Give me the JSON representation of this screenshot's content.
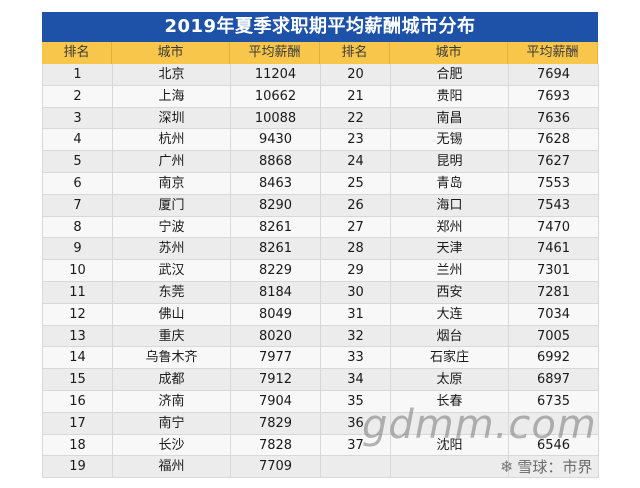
{
  "title": "2019年夏季求职期平均薪酬城市分布",
  "headers": [
    "排名",
    "城市",
    "平均薪酬",
    "排名",
    "城市",
    "平均薪酬"
  ],
  "left_rows": [
    {
      "rank": "1",
      "city": "北京",
      "salary": "11204"
    },
    {
      "rank": "2",
      "city": "上海",
      "salary": "10662"
    },
    {
      "rank": "3",
      "city": "深圳",
      "salary": "10088"
    },
    {
      "rank": "4",
      "city": "杭州",
      "salary": "9430"
    },
    {
      "rank": "5",
      "city": "广州",
      "salary": "8868"
    },
    {
      "rank": "6",
      "city": "南京",
      "salary": "8463"
    },
    {
      "rank": "7",
      "city": "厦门",
      "salary": "8290"
    },
    {
      "rank": "8",
      "city": "宁波",
      "salary": "8261"
    },
    {
      "rank": "9",
      "city": "苏州",
      "salary": "8261"
    },
    {
      "rank": "10",
      "city": "武汉",
      "salary": "8229"
    },
    {
      "rank": "11",
      "city": "东莞",
      "salary": "8184"
    },
    {
      "rank": "12",
      "city": "佛山",
      "salary": "8049"
    },
    {
      "rank": "13",
      "city": "重庆",
      "salary": "8020"
    },
    {
      "rank": "14",
      "city": "乌鲁木齐",
      "salary": "7977"
    },
    {
      "rank": "15",
      "city": "成都",
      "salary": "7912"
    },
    {
      "rank": "16",
      "city": "济南",
      "salary": "7904"
    },
    {
      "rank": "17",
      "city": "南宁",
      "salary": "7829"
    },
    {
      "rank": "18",
      "city": "长沙",
      "salary": "7828"
    },
    {
      "rank": "19",
      "city": "福州",
      "salary": "7709"
    }
  ],
  "right_rows": [
    {
      "rank": "20",
      "city": "合肥",
      "salary": "7694"
    },
    {
      "rank": "21",
      "city": "贵阳",
      "salary": "7693"
    },
    {
      "rank": "22",
      "city": "南昌",
      "salary": "7636"
    },
    {
      "rank": "23",
      "city": "无锡",
      "salary": "7628"
    },
    {
      "rank": "24",
      "city": "昆明",
      "salary": "7627"
    },
    {
      "rank": "25",
      "city": "青岛",
      "salary": "7553"
    },
    {
      "rank": "26",
      "city": "海口",
      "salary": "7543"
    },
    {
      "rank": "27",
      "city": "郑州",
      "salary": "7470"
    },
    {
      "rank": "28",
      "city": "天津",
      "salary": "7461"
    },
    {
      "rank": "29",
      "city": "兰州",
      "salary": "7301"
    },
    {
      "rank": "30",
      "city": "西安",
      "salary": "7281"
    },
    {
      "rank": "31",
      "city": "大连",
      "salary": "7034"
    },
    {
      "rank": "32",
      "city": "烟台",
      "salary": "7005"
    },
    {
      "rank": "33",
      "city": "石家庄",
      "salary": "6992"
    },
    {
      "rank": "34",
      "city": "太原",
      "salary": "6897"
    },
    {
      "rank": "35",
      "city": "长春",
      "salary": "6735"
    },
    {
      "rank": "36",
      "city": "",
      "salary": ""
    },
    {
      "rank": "37",
      "city": "沈阳",
      "salary": "6546"
    },
    {
      "rank": "",
      "city": "",
      "salary": ""
    }
  ],
  "watermark_text": "gdmm.com",
  "logo": {
    "text": "雪球：市界",
    "icon": "snowball-icon"
  }
}
